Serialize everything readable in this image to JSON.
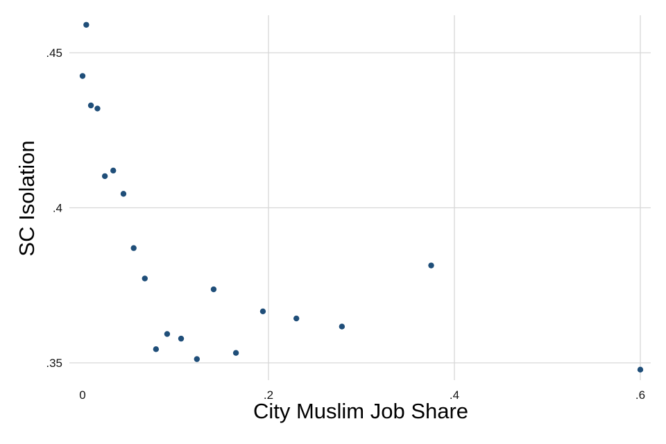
{
  "chart_data": {
    "type": "scatter",
    "xlabel": "City Muslim Job Share",
    "ylabel": "SC Isolation",
    "xlim": [
      0,
      0.6
    ],
    "ylim": [
      0.35,
      0.45
    ],
    "x_ticks": [
      0,
      0.2,
      0.4,
      0.6
    ],
    "x_tick_labels": [
      "0",
      ".2",
      ".4",
      ".6"
    ],
    "y_ticks": [
      0.35,
      0.4,
      0.45
    ],
    "y_tick_labels": [
      ".35",
      ".4",
      ".45"
    ],
    "grid": true,
    "marker_color": "#1f4e79",
    "points": [
      {
        "x": 0.0,
        "y": 0.4425
      },
      {
        "x": 0.004,
        "y": 0.459
      },
      {
        "x": 0.009,
        "y": 0.433
      },
      {
        "x": 0.016,
        "y": 0.432
      },
      {
        "x": 0.024,
        "y": 0.4102
      },
      {
        "x": 0.033,
        "y": 0.412
      },
      {
        "x": 0.044,
        "y": 0.4045
      },
      {
        "x": 0.055,
        "y": 0.387
      },
      {
        "x": 0.067,
        "y": 0.3772
      },
      {
        "x": 0.079,
        "y": 0.3544
      },
      {
        "x": 0.091,
        "y": 0.3593
      },
      {
        "x": 0.106,
        "y": 0.3578
      },
      {
        "x": 0.123,
        "y": 0.3512
      },
      {
        "x": 0.141,
        "y": 0.3737
      },
      {
        "x": 0.165,
        "y": 0.3532
      },
      {
        "x": 0.194,
        "y": 0.3666
      },
      {
        "x": 0.23,
        "y": 0.3643
      },
      {
        "x": 0.279,
        "y": 0.3617
      },
      {
        "x": 0.375,
        "y": 0.3814
      },
      {
        "x": 0.6,
        "y": 0.3478
      }
    ]
  }
}
